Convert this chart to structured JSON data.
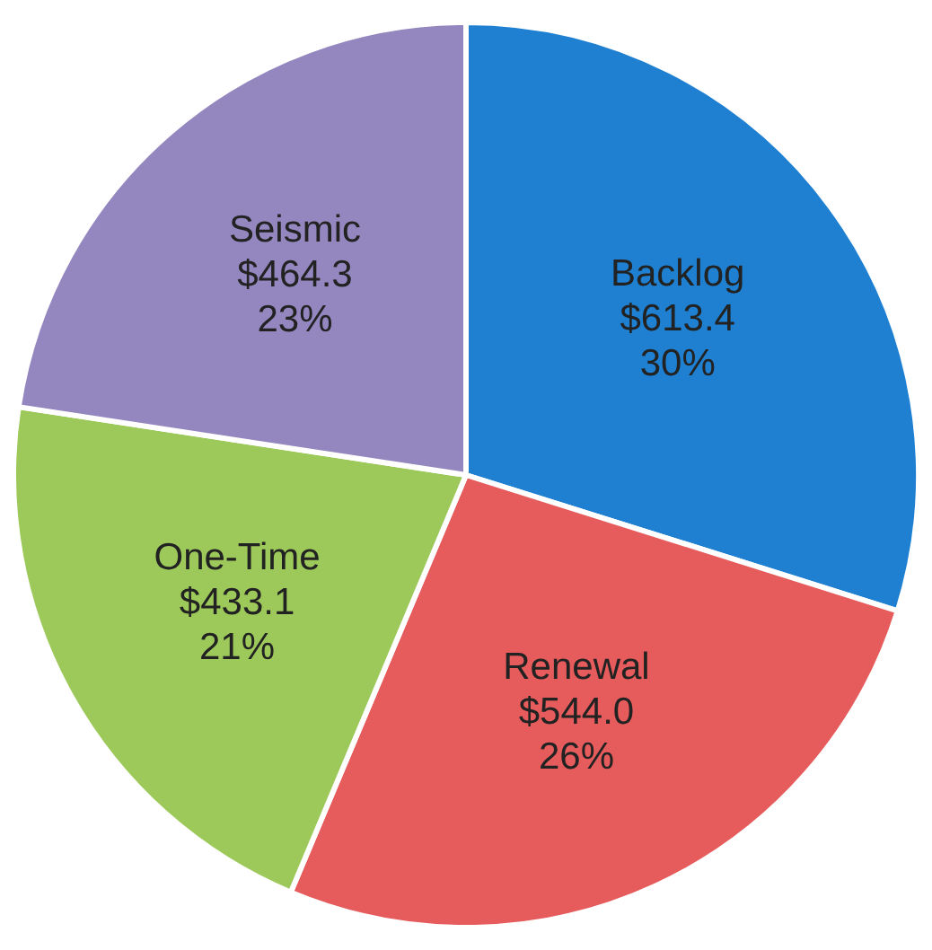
{
  "chart_data": {
    "type": "pie",
    "categories": [
      "Backlog",
      "Renewal",
      "One-Time",
      "Seismic"
    ],
    "values": [
      613.4,
      544.0,
      433.1,
      464.3
    ],
    "colors": [
      "#1f80d2",
      "#e65c5c",
      "#9dc95b",
      "#9487bf"
    ],
    "value_labels": [
      "$613.4\n30%",
      "$544.0\n26%",
      "$433.1\n21%",
      "$464.3\n23%"
    ],
    "legend": false
  }
}
